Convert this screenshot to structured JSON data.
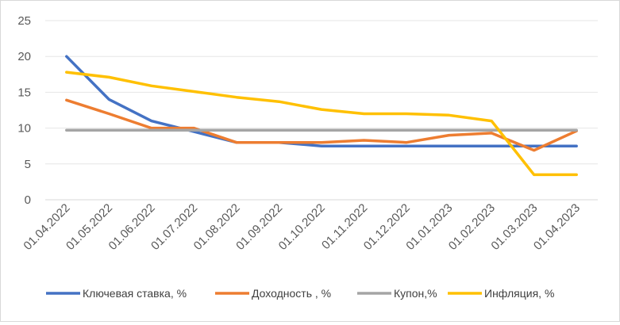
{
  "chart_data": {
    "type": "line",
    "title": "",
    "xlabel": "",
    "ylabel": "",
    "ylim": [
      0,
      25
    ],
    "yticks": [
      0,
      5,
      10,
      15,
      20,
      25
    ],
    "grid": "horizontal",
    "legend_position": "bottom",
    "categories": [
      "01.04.2022",
      "01.05.2022",
      "01.06.2022",
      "01.07.2022",
      "01.08.2022",
      "01.09.2022",
      "01.10.2022",
      "01.11.2022",
      "01.12.2022",
      "01.01.2023",
      "01.02.2023",
      "01.03.2023",
      "01.04.2023"
    ],
    "series": [
      {
        "name": "Ключевая ставка, %",
        "color": "#4472C4",
        "values": [
          20,
          14,
          11,
          9.5,
          8,
          8,
          7.5,
          7.5,
          7.5,
          7.5,
          7.5,
          7.5,
          7.5
        ]
      },
      {
        "name": "Доходность , %",
        "color": "#ED7D31",
        "values": [
          13.9,
          12,
          10,
          10,
          8,
          8,
          8,
          8.3,
          8,
          9,
          9.3,
          6.9,
          9.6
        ]
      },
      {
        "name": "Купон,%",
        "color": "#A5A5A5",
        "values": [
          9.7,
          9.7,
          9.7,
          9.7,
          9.7,
          9.7,
          9.7,
          9.7,
          9.7,
          9.7,
          9.7,
          9.7,
          9.7
        ]
      },
      {
        "name": "Инфляция, %",
        "color": "#FFC000",
        "values": [
          17.8,
          17.1,
          15.9,
          15.1,
          14.3,
          13.7,
          12.6,
          12,
          12,
          11.8,
          11,
          3.5,
          3.5
        ]
      }
    ]
  }
}
